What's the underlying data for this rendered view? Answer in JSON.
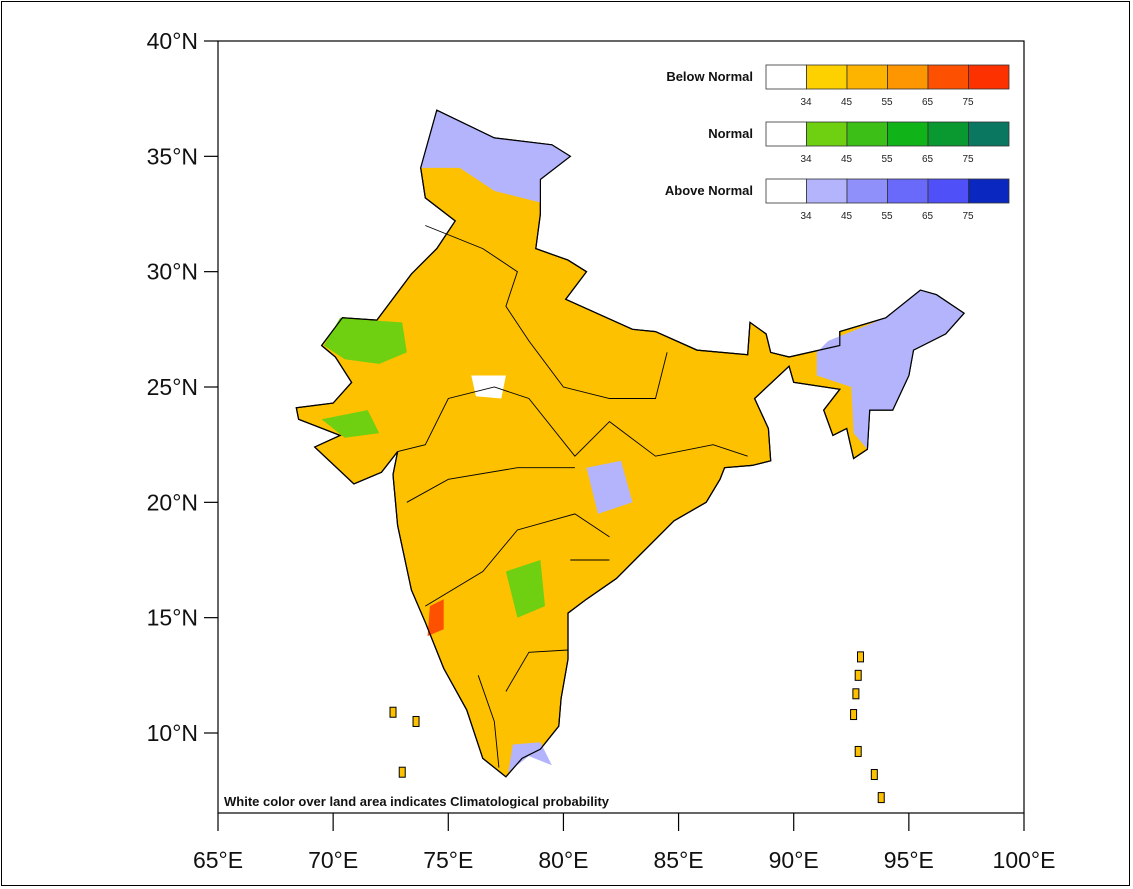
{
  "map": {
    "lat_ticks": [
      {
        "value": 40,
        "label": "40°N"
      },
      {
        "value": 35,
        "label": "35°N"
      },
      {
        "value": 30,
        "label": "30°N"
      },
      {
        "value": 25,
        "label": "25°N"
      },
      {
        "value": 20,
        "label": "20°N"
      },
      {
        "value": 15,
        "label": "15°N"
      },
      {
        "value": 10,
        "label": "10°N"
      }
    ],
    "lon_ticks": [
      {
        "value": 65,
        "label": "65°E"
      },
      {
        "value": 70,
        "label": "70°E"
      },
      {
        "value": 75,
        "label": "75°E"
      },
      {
        "value": 80,
        "label": "80°E"
      },
      {
        "value": 85,
        "label": "85°E"
      },
      {
        "value": 90,
        "label": "90°E"
      },
      {
        "value": 95,
        "label": "95°E"
      },
      {
        "value": 100,
        "label": "100°E"
      }
    ],
    "lon_range": [
      65,
      100
    ],
    "lat_range": [
      6.5,
      40
    ],
    "note": "White color over land area indicates Climatological probability",
    "dominant_category": "Below Normal"
  },
  "legend": [
    {
      "title": "Below Normal",
      "colors": [
        "#ffffff",
        "#fdd000",
        "#fdb400",
        "#fd9600",
        "#fd5000",
        "#fd3000"
      ],
      "labels": [
        "34",
        "45",
        "55",
        "65",
        "75"
      ]
    },
    {
      "title": "Normal",
      "colors": [
        "#ffffff",
        "#6ed010",
        "#3cc018",
        "#10b418",
        "#0a9830",
        "#0a7860"
      ],
      "labels": [
        "34",
        "45",
        "55",
        "65",
        "75"
      ]
    },
    {
      "title": "Above Normal",
      "colors": [
        "#ffffff",
        "#b4b4fc",
        "#9090fa",
        "#6a6afa",
        "#5050f8",
        "#0a28c0"
      ],
      "labels": [
        "34",
        "45",
        "55",
        "65",
        "75"
      ]
    }
  ]
}
